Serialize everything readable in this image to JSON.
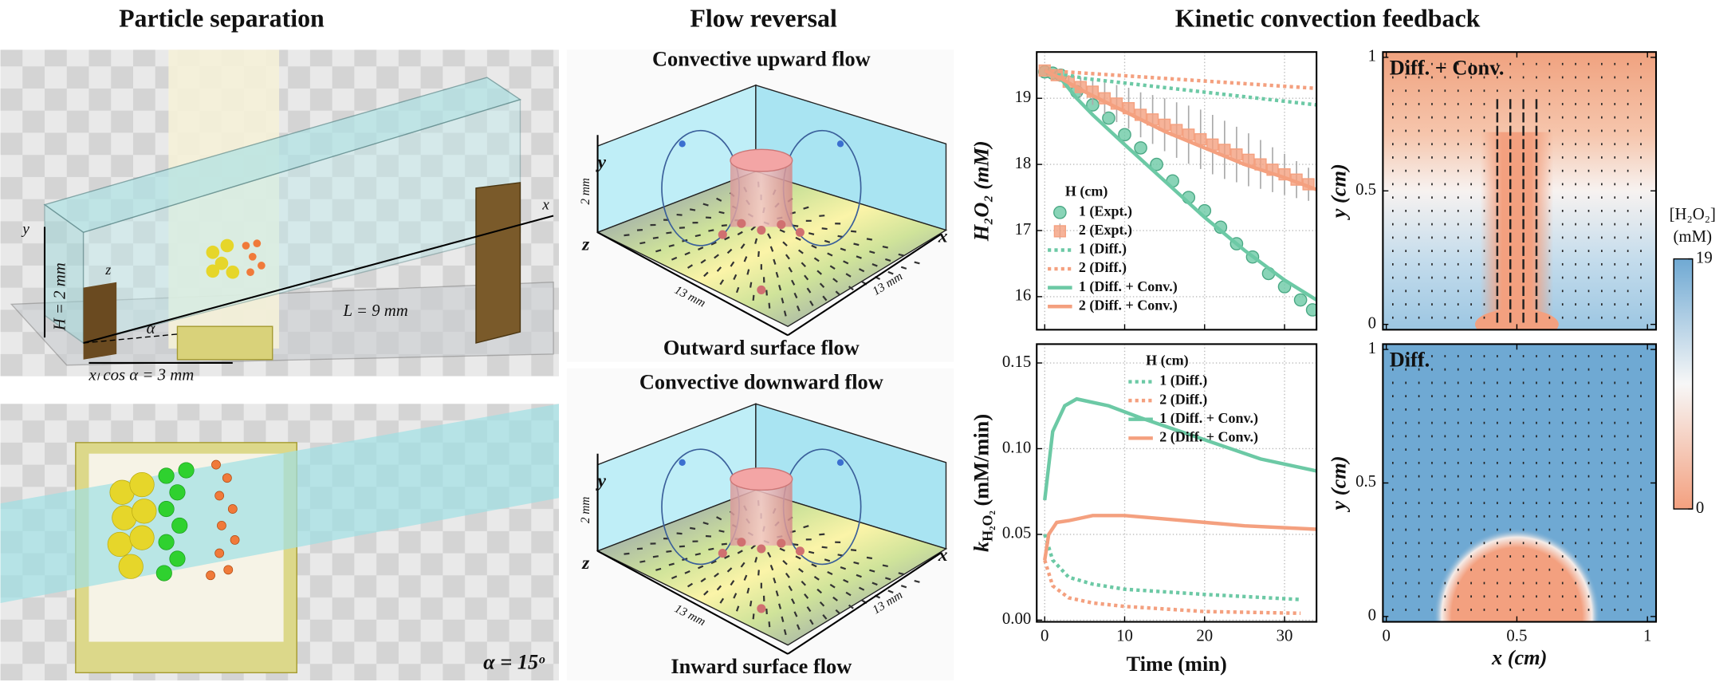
{
  "headings": [
    "Particle separation",
    "Flow reversal",
    "Kinetic convection feedback"
  ],
  "particle_separation": {
    "length_label": "L = 9 mm",
    "height_label": "H = 2 mm",
    "offset_label": "xₗ cos α = 3 mm",
    "angle_label": "α",
    "angle_value_label": "α = 15ᵒ",
    "axes": [
      "x",
      "y",
      "z"
    ]
  },
  "flow_reversal": {
    "panels": [
      {
        "title": "Convective upward flow",
        "caption": "Outward surface flow"
      },
      {
        "title": "Convective downward flow",
        "caption": "Inward surface flow"
      }
    ],
    "dims": {
      "width": "13 mm",
      "depth": "13 mm",
      "height": "2 mm"
    },
    "axes": [
      "x",
      "y",
      "z"
    ]
  },
  "chart_data": [
    {
      "type": "line",
      "ylabel": "H₂O₂ (mM)",
      "xlim": [
        -1,
        34
      ],
      "ylim": [
        15.5,
        19.7
      ],
      "xticks": [
        0,
        10,
        20,
        30
      ],
      "xtick_labels": false,
      "yticks": [
        16,
        17,
        18,
        19
      ],
      "grid": true,
      "legend": "lower left",
      "legend_title": "H (cm)",
      "series": [
        {
          "name": "1 (Expt.)",
          "color": "#6cc9a5",
          "style": "markers",
          "marker": "circle",
          "x": [
            0,
            1,
            2,
            4,
            6,
            8,
            10,
            12,
            14,
            16,
            18,
            20,
            22,
            24,
            26,
            28,
            30,
            32,
            33.5
          ],
          "values": [
            19.4,
            19.38,
            19.35,
            19.1,
            18.9,
            18.7,
            18.45,
            18.25,
            18.0,
            17.75,
            17.5,
            17.3,
            17.05,
            16.8,
            16.6,
            16.35,
            16.15,
            15.95,
            15.8
          ]
        },
        {
          "name": "2 (Expt.)",
          "color": "#f4a07f",
          "style": "markers",
          "marker": "square",
          "x": [
            0,
            1.5,
            3,
            4.5,
            6,
            7.5,
            9,
            10.5,
            12,
            13.5,
            15,
            16.5,
            18,
            19.5,
            21,
            22.5,
            24,
            25.5,
            27,
            28.5,
            30,
            31.5,
            33
          ],
          "values": [
            19.42,
            19.35,
            19.25,
            19.17,
            19.1,
            19.0,
            18.92,
            18.85,
            18.75,
            18.68,
            18.6,
            18.52,
            18.45,
            18.38,
            18.3,
            18.22,
            18.15,
            18.07,
            18.0,
            17.92,
            17.85,
            17.77,
            17.7
          ],
          "errors": [
            0.02,
            0.05,
            0.1,
            0.15,
            0.2,
            0.24,
            0.28,
            0.31,
            0.34,
            0.37,
            0.4,
            0.42,
            0.44,
            0.45,
            0.45,
            0.44,
            0.42,
            0.4,
            0.37,
            0.34,
            0.31,
            0.28,
            0.25
          ]
        },
        {
          "name": "1 (Diff.)",
          "color": "#6cc9a5",
          "style": "dotted",
          "x": [
            0,
            5,
            34
          ],
          "values": [
            19.42,
            19.3,
            18.9
          ]
        },
        {
          "name": "2 (Diff.)",
          "color": "#f4a07f",
          "style": "dotted",
          "x": [
            0,
            34
          ],
          "values": [
            19.42,
            19.15
          ]
        },
        {
          "name": "1 (Diff. + Conv.)",
          "color": "#6cc9a5",
          "style": "line",
          "x": [
            0,
            2,
            4,
            6,
            10,
            15,
            20,
            25,
            30,
            34
          ],
          "values": [
            19.42,
            19.3,
            19.0,
            18.75,
            18.3,
            17.75,
            17.2,
            16.7,
            16.25,
            15.95
          ]
        },
        {
          "name": "2 (Diff. + Conv.)",
          "color": "#f4a07f",
          "style": "line",
          "x": [
            0,
            2,
            5,
            10,
            15,
            20,
            25,
            30,
            34
          ],
          "values": [
            19.42,
            19.3,
            19.1,
            18.8,
            18.5,
            18.25,
            18.0,
            17.8,
            17.62
          ]
        }
      ]
    },
    {
      "type": "line",
      "xlabel": "Time (min)",
      "ylabel": "k",
      "ylabel_sub": "H₂O₂",
      "ylabel_unit": "(mM/min)",
      "xlim": [
        -1,
        34
      ],
      "ylim": [
        -0.001,
        0.161
      ],
      "xticks": [
        0,
        10,
        20,
        30
      ],
      "yticks": [
        {
          "value": 0,
          "label": "0.00"
        },
        {
          "value": 0.05,
          "label": "0.05"
        },
        {
          "value": 0.1,
          "label": "0.10"
        },
        {
          "value": 0.15,
          "label": "0.15"
        }
      ],
      "grid": true,
      "legend": "upper right",
      "legend_title": "H (cm)",
      "series": [
        {
          "name": "1 (Diff.)",
          "color": "#6cc9a5",
          "style": "dotted",
          "x": [
            0,
            1,
            3,
            6,
            10,
            20,
            32
          ],
          "values": [
            0.05,
            0.035,
            0.025,
            0.021,
            0.018,
            0.015,
            0.012
          ]
        },
        {
          "name": "2 (Diff.)",
          "color": "#f4a07f",
          "style": "dotted",
          "x": [
            0,
            1,
            3,
            6,
            10,
            20,
            32
          ],
          "values": [
            0.035,
            0.02,
            0.013,
            0.01,
            0.008,
            0.005,
            0.004
          ]
        },
        {
          "name": "1 (Diff. + Conv.)",
          "color": "#6cc9a5",
          "style": "line",
          "x": [
            0,
            1,
            2.5,
            4,
            8,
            12,
            17,
            22,
            27,
            34
          ],
          "values": [
            0.07,
            0.11,
            0.125,
            0.129,
            0.125,
            0.118,
            0.11,
            0.102,
            0.094,
            0.087
          ]
        },
        {
          "name": "2 (Diff. + Conv.)",
          "color": "#f4a07f",
          "style": "line",
          "x": [
            0,
            0.5,
            1.5,
            3,
            6,
            10,
            15,
            20,
            25,
            34
          ],
          "values": [
            0.035,
            0.05,
            0.057,
            0.058,
            0.061,
            0.061,
            0.059,
            0.057,
            0.055,
            0.053
          ]
        }
      ]
    },
    {
      "type": "heatmap",
      "annotation": "Diff. + Conv.",
      "field": "jet",
      "ylabel": "y (cm)",
      "xlim": [
        -0.013,
        1.033
      ],
      "ylim": [
        -0.02,
        1.02
      ],
      "xticks": [
        0,
        0.5,
        1
      ],
      "xtick_labels": false,
      "yticks": [
        0,
        0.5,
        1
      ]
    },
    {
      "type": "heatmap",
      "annotation": "Diff.",
      "field": "blob",
      "xlabel": "x (cm)",
      "ylabel": "y (cm)",
      "xlim": [
        -0.013,
        1.033
      ],
      "ylim": [
        -0.02,
        1.02
      ],
      "xticks": [
        0,
        0.5,
        1
      ],
      "yticks": [
        0,
        0.5,
        1
      ]
    }
  ],
  "colorbar": {
    "label": [
      "[H₂O₂]",
      "(mM)"
    ],
    "lim": [
      0,
      19
    ],
    "ticks": [
      0,
      19
    ]
  }
}
